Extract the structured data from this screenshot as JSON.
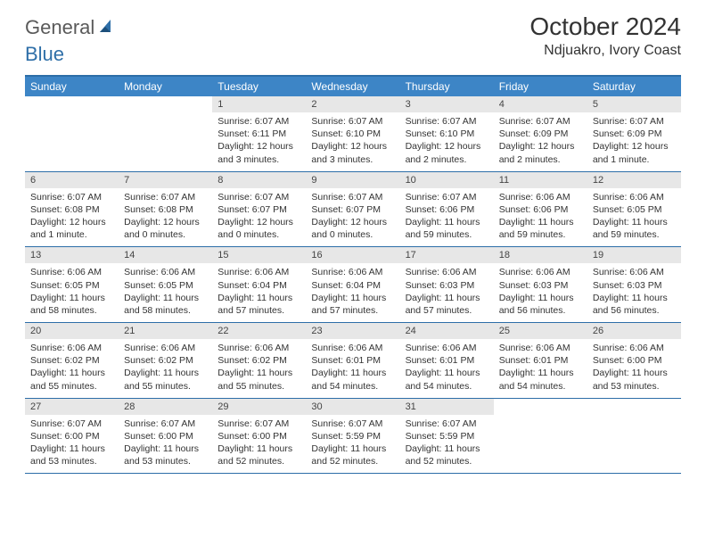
{
  "logo": {
    "text_general": "General",
    "text_blue": "Blue"
  },
  "title": "October 2024",
  "location": "Ndjuakro, Ivory Coast",
  "colors": {
    "header_bg": "#3d85c6",
    "header_text": "#ffffff",
    "daynum_bg": "#e7e7e7",
    "rule": "#2d6ea8",
    "logo_gray": "#5a5a5a",
    "logo_blue": "#2f6fa8"
  },
  "weekdays": [
    "Sunday",
    "Monday",
    "Tuesday",
    "Wednesday",
    "Thursday",
    "Friday",
    "Saturday"
  ],
  "weeks": [
    [
      {
        "empty": true
      },
      {
        "empty": true
      },
      {
        "num": "1",
        "sunrise": "Sunrise: 6:07 AM",
        "sunset": "Sunset: 6:11 PM",
        "daylight1": "Daylight: 12 hours",
        "daylight2": "and 3 minutes."
      },
      {
        "num": "2",
        "sunrise": "Sunrise: 6:07 AM",
        "sunset": "Sunset: 6:10 PM",
        "daylight1": "Daylight: 12 hours",
        "daylight2": "and 3 minutes."
      },
      {
        "num": "3",
        "sunrise": "Sunrise: 6:07 AM",
        "sunset": "Sunset: 6:10 PM",
        "daylight1": "Daylight: 12 hours",
        "daylight2": "and 2 minutes."
      },
      {
        "num": "4",
        "sunrise": "Sunrise: 6:07 AM",
        "sunset": "Sunset: 6:09 PM",
        "daylight1": "Daylight: 12 hours",
        "daylight2": "and 2 minutes."
      },
      {
        "num": "5",
        "sunrise": "Sunrise: 6:07 AM",
        "sunset": "Sunset: 6:09 PM",
        "daylight1": "Daylight: 12 hours",
        "daylight2": "and 1 minute."
      }
    ],
    [
      {
        "num": "6",
        "sunrise": "Sunrise: 6:07 AM",
        "sunset": "Sunset: 6:08 PM",
        "daylight1": "Daylight: 12 hours",
        "daylight2": "and 1 minute."
      },
      {
        "num": "7",
        "sunrise": "Sunrise: 6:07 AM",
        "sunset": "Sunset: 6:08 PM",
        "daylight1": "Daylight: 12 hours",
        "daylight2": "and 0 minutes."
      },
      {
        "num": "8",
        "sunrise": "Sunrise: 6:07 AM",
        "sunset": "Sunset: 6:07 PM",
        "daylight1": "Daylight: 12 hours",
        "daylight2": "and 0 minutes."
      },
      {
        "num": "9",
        "sunrise": "Sunrise: 6:07 AM",
        "sunset": "Sunset: 6:07 PM",
        "daylight1": "Daylight: 12 hours",
        "daylight2": "and 0 minutes."
      },
      {
        "num": "10",
        "sunrise": "Sunrise: 6:07 AM",
        "sunset": "Sunset: 6:06 PM",
        "daylight1": "Daylight: 11 hours",
        "daylight2": "and 59 minutes."
      },
      {
        "num": "11",
        "sunrise": "Sunrise: 6:06 AM",
        "sunset": "Sunset: 6:06 PM",
        "daylight1": "Daylight: 11 hours",
        "daylight2": "and 59 minutes."
      },
      {
        "num": "12",
        "sunrise": "Sunrise: 6:06 AM",
        "sunset": "Sunset: 6:05 PM",
        "daylight1": "Daylight: 11 hours",
        "daylight2": "and 59 minutes."
      }
    ],
    [
      {
        "num": "13",
        "sunrise": "Sunrise: 6:06 AM",
        "sunset": "Sunset: 6:05 PM",
        "daylight1": "Daylight: 11 hours",
        "daylight2": "and 58 minutes."
      },
      {
        "num": "14",
        "sunrise": "Sunrise: 6:06 AM",
        "sunset": "Sunset: 6:05 PM",
        "daylight1": "Daylight: 11 hours",
        "daylight2": "and 58 minutes."
      },
      {
        "num": "15",
        "sunrise": "Sunrise: 6:06 AM",
        "sunset": "Sunset: 6:04 PM",
        "daylight1": "Daylight: 11 hours",
        "daylight2": "and 57 minutes."
      },
      {
        "num": "16",
        "sunrise": "Sunrise: 6:06 AM",
        "sunset": "Sunset: 6:04 PM",
        "daylight1": "Daylight: 11 hours",
        "daylight2": "and 57 minutes."
      },
      {
        "num": "17",
        "sunrise": "Sunrise: 6:06 AM",
        "sunset": "Sunset: 6:03 PM",
        "daylight1": "Daylight: 11 hours",
        "daylight2": "and 57 minutes."
      },
      {
        "num": "18",
        "sunrise": "Sunrise: 6:06 AM",
        "sunset": "Sunset: 6:03 PM",
        "daylight1": "Daylight: 11 hours",
        "daylight2": "and 56 minutes."
      },
      {
        "num": "19",
        "sunrise": "Sunrise: 6:06 AM",
        "sunset": "Sunset: 6:03 PM",
        "daylight1": "Daylight: 11 hours",
        "daylight2": "and 56 minutes."
      }
    ],
    [
      {
        "num": "20",
        "sunrise": "Sunrise: 6:06 AM",
        "sunset": "Sunset: 6:02 PM",
        "daylight1": "Daylight: 11 hours",
        "daylight2": "and 55 minutes."
      },
      {
        "num": "21",
        "sunrise": "Sunrise: 6:06 AM",
        "sunset": "Sunset: 6:02 PM",
        "daylight1": "Daylight: 11 hours",
        "daylight2": "and 55 minutes."
      },
      {
        "num": "22",
        "sunrise": "Sunrise: 6:06 AM",
        "sunset": "Sunset: 6:02 PM",
        "daylight1": "Daylight: 11 hours",
        "daylight2": "and 55 minutes."
      },
      {
        "num": "23",
        "sunrise": "Sunrise: 6:06 AM",
        "sunset": "Sunset: 6:01 PM",
        "daylight1": "Daylight: 11 hours",
        "daylight2": "and 54 minutes."
      },
      {
        "num": "24",
        "sunrise": "Sunrise: 6:06 AM",
        "sunset": "Sunset: 6:01 PM",
        "daylight1": "Daylight: 11 hours",
        "daylight2": "and 54 minutes."
      },
      {
        "num": "25",
        "sunrise": "Sunrise: 6:06 AM",
        "sunset": "Sunset: 6:01 PM",
        "daylight1": "Daylight: 11 hours",
        "daylight2": "and 54 minutes."
      },
      {
        "num": "26",
        "sunrise": "Sunrise: 6:06 AM",
        "sunset": "Sunset: 6:00 PM",
        "daylight1": "Daylight: 11 hours",
        "daylight2": "and 53 minutes."
      }
    ],
    [
      {
        "num": "27",
        "sunrise": "Sunrise: 6:07 AM",
        "sunset": "Sunset: 6:00 PM",
        "daylight1": "Daylight: 11 hours",
        "daylight2": "and 53 minutes."
      },
      {
        "num": "28",
        "sunrise": "Sunrise: 6:07 AM",
        "sunset": "Sunset: 6:00 PM",
        "daylight1": "Daylight: 11 hours",
        "daylight2": "and 53 minutes."
      },
      {
        "num": "29",
        "sunrise": "Sunrise: 6:07 AM",
        "sunset": "Sunset: 6:00 PM",
        "daylight1": "Daylight: 11 hours",
        "daylight2": "and 52 minutes."
      },
      {
        "num": "30",
        "sunrise": "Sunrise: 6:07 AM",
        "sunset": "Sunset: 5:59 PM",
        "daylight1": "Daylight: 11 hours",
        "daylight2": "and 52 minutes."
      },
      {
        "num": "31",
        "sunrise": "Sunrise: 6:07 AM",
        "sunset": "Sunset: 5:59 PM",
        "daylight1": "Daylight: 11 hours",
        "daylight2": "and 52 minutes."
      },
      {
        "empty": true
      },
      {
        "empty": true
      }
    ]
  ]
}
